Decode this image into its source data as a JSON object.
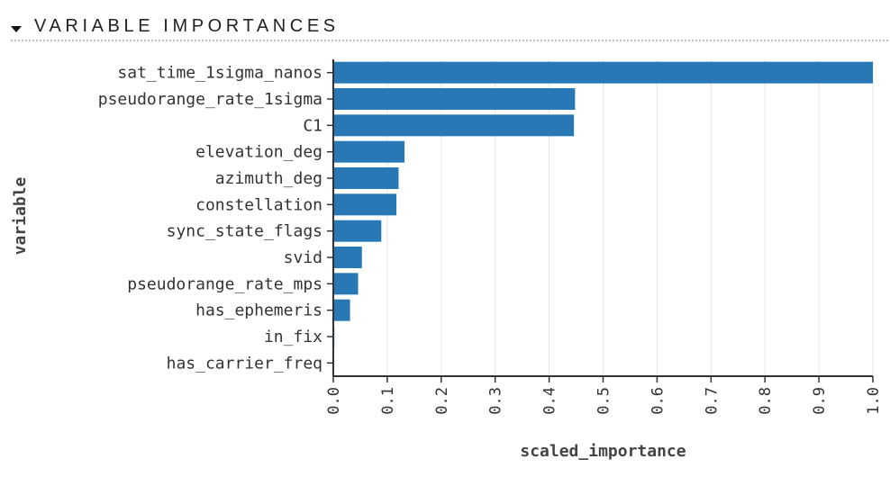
{
  "header": {
    "title": "VARIABLE IMPORTANCES"
  },
  "chart_data": {
    "type": "bar",
    "orientation": "horizontal",
    "xlabel": "scaled_importance",
    "ylabel": "variable",
    "xlim": [
      0,
      1
    ],
    "xticks": [
      "0.0",
      "0.1",
      "0.2",
      "0.3",
      "0.4",
      "0.5",
      "0.6",
      "0.7",
      "0.8",
      "0.9",
      "1.0"
    ],
    "grid": true,
    "bar_color": "#2878b5",
    "categories": [
      "sat_time_1sigma_nanos",
      "pseudorange_rate_1sigma",
      "C1",
      "elevation_deg",
      "azimuth_deg",
      "constellation",
      "sync_state_flags",
      "svid",
      "pseudorange_rate_mps",
      "has_ephemeris",
      "in_fix",
      "has_carrier_freq"
    ],
    "values": [
      1.0,
      0.448,
      0.446,
      0.132,
      0.121,
      0.117,
      0.089,
      0.053,
      0.046,
      0.031,
      0.002,
      0.001
    ]
  }
}
